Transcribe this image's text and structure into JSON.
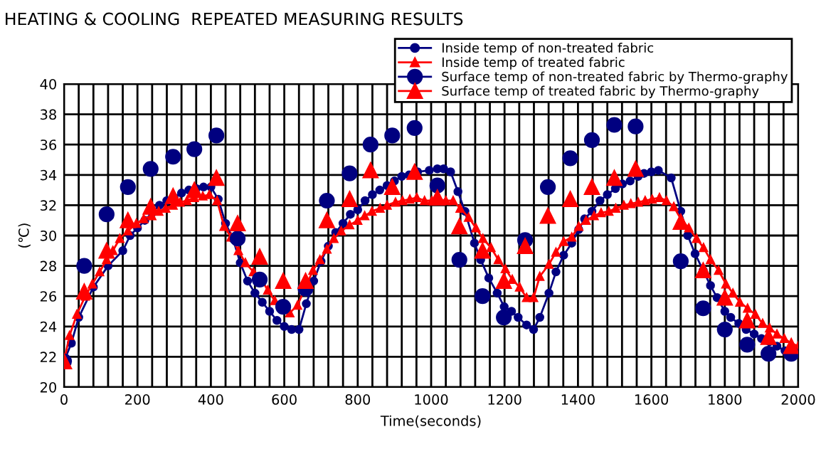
{
  "chart_data": {
    "type": "line",
    "title": "HEATING & COOLING  REPEATED MEASURING RESULTS",
    "xlabel": "Time(seconds)",
    "ylabel": "(℃)",
    "xlim": [
      0,
      2000
    ],
    "ylim": [
      20,
      40
    ],
    "xticks": [
      0,
      {
        "value": 40,
        "label": null
      },
      {
        "value": 80,
        "label": null
      },
      {
        "value": 120,
        "label": null
      },
      {
        "value": 160,
        "label": null
      },
      200,
      {
        "value": 240,
        "label": null
      },
      {
        "value": 280,
        "label": null
      },
      {
        "value": 320,
        "label": null
      },
      {
        "value": 360,
        "label": null
      },
      400,
      {
        "value": 440,
        "label": null
      },
      {
        "value": 480,
        "label": null
      },
      {
        "value": 520,
        "label": null
      },
      {
        "value": 560,
        "label": null
      },
      600,
      {
        "value": 640,
        "label": null
      },
      {
        "value": 680,
        "label": null
      },
      {
        "value": 720,
        "label": null
      },
      {
        "value": 760,
        "label": null
      },
      800,
      {
        "value": 840,
        "label": null
      },
      {
        "value": 880,
        "label": null
      },
      {
        "value": 920,
        "label": null
      },
      {
        "value": 960,
        "label": null
      },
      1000,
      {
        "value": 1040,
        "label": null
      },
      {
        "value": 1080,
        "label": null
      },
      {
        "value": 1120,
        "label": null
      },
      {
        "value": 1160,
        "label": null
      },
      1200,
      {
        "value": 1240,
        "label": null
      },
      {
        "value": 1280,
        "label": null
      },
      {
        "value": 1320,
        "label": null
      },
      {
        "value": 1360,
        "label": null
      },
      1400,
      {
        "value": 1440,
        "label": null
      },
      {
        "value": 1480,
        "label": null
      },
      {
        "value": 1520,
        "label": null
      },
      {
        "value": 1560,
        "label": null
      },
      1600,
      {
        "value": 1640,
        "label": null
      },
      {
        "value": 1680,
        "label": null
      },
      {
        "value": 1720,
        "label": null
      },
      {
        "value": 1760,
        "label": null
      },
      1800,
      {
        "value": 1840,
        "label": null
      },
      {
        "value": 1880,
        "label": null
      },
      {
        "value": 1920,
        "label": null
      },
      {
        "value": 1960,
        "label": null
      },
      2000
    ],
    "yticks": [
      20,
      22,
      24,
      26,
      28,
      30,
      32,
      34,
      36,
      38,
      40
    ],
    "grid": true,
    "legend": "top right",
    "series": [
      {
        "name": "Inside temp of non-treated fabric",
        "color": "#000080",
        "marker": "circle",
        "x": [
          0,
          20,
          40,
          80,
          120,
          160,
          180,
          200,
          220,
          240,
          260,
          280,
          300,
          320,
          340,
          360,
          380,
          400,
          420,
          440,
          460,
          480,
          500,
          520,
          540,
          560,
          580,
          600,
          620,
          640,
          660,
          680,
          700,
          720,
          740,
          760,
          780,
          800,
          820,
          840,
          860,
          880,
          900,
          920,
          940,
          963,
          995,
          1017,
          1034,
          1053,
          1073,
          1092,
          1118,
          1135,
          1157,
          1180,
          1199,
          1219,
          1237,
          1260,
          1279,
          1296,
          1321,
          1340,
          1361,
          1383,
          1402,
          1418,
          1438,
          1460,
          1480,
          1502,
          1521,
          1542,
          1564,
          1580,
          1600,
          1619,
          1654,
          1680,
          1699,
          1719,
          1741,
          1761,
          1779,
          1800,
          1816,
          1838,
          1858,
          1880,
          1900,
          1922,
          1942,
          1964,
          1984,
          2000
        ],
        "values": [
          21.7,
          22.9,
          24.6,
          26.6,
          28.0,
          29.0,
          30.0,
          30.5,
          31.0,
          31.5,
          32.0,
          32.3,
          32.5,
          32.8,
          33.0,
          33.1,
          33.2,
          33.2,
          32.4,
          30.8,
          29.8,
          28.2,
          27.0,
          26.2,
          25.6,
          25.0,
          24.4,
          24.0,
          23.8,
          23.8,
          25.5,
          27.0,
          28.3,
          29.3,
          30.2,
          30.8,
          31.4,
          31.7,
          32.3,
          32.7,
          33.0,
          33.3,
          33.6,
          33.9,
          34.0,
          34.2,
          34.3,
          34.4,
          34.4,
          34.2,
          32.9,
          31.6,
          29.5,
          28.4,
          27.2,
          26.2,
          25.3,
          25.0,
          24.6,
          24.1,
          23.8,
          24.6,
          26.2,
          27.6,
          28.7,
          29.5,
          30.4,
          31.1,
          31.6,
          32.3,
          32.7,
          33.1,
          33.4,
          33.6,
          33.9,
          34.1,
          34.2,
          34.3,
          33.8,
          31.6,
          30.0,
          28.8,
          27.7,
          26.7,
          25.9,
          25.0,
          24.6,
          24.2,
          23.8,
          23.5,
          23.2,
          23.0,
          22.7,
          22.4,
          22.3,
          22.3
        ]
      },
      {
        "name": "Inside temp of treated fabric",
        "color": "#ff0000",
        "marker": "triangle",
        "x": [
          0,
          15,
          35,
          58,
          77,
          97,
          116,
          133,
          152,
          174,
          197,
          217,
          239,
          258,
          277,
          297,
          316,
          335,
          355,
          378,
          396,
          417,
          436,
          455,
          475,
          494,
          516,
          535,
          555,
          574,
          594,
          615,
          636,
          678,
          697,
          716,
          735,
          755,
          778,
          800,
          819,
          839,
          861,
          880,
          903,
          922,
          942,
          961,
          982,
          1002,
          1021,
          1040,
          1060,
          1079,
          1102,
          1122,
          1141,
          1163,
          1183,
          1202,
          1221,
          1241,
          1260,
          1279,
          1296,
          1321,
          1340,
          1361,
          1383,
          1402,
          1422,
          1444,
          1463,
          1484,
          1503,
          1525,
          1544,
          1564,
          1583,
          1602,
          1622,
          1641,
          1661,
          1680,
          1702,
          1723,
          1742,
          1761,
          1783,
          1803,
          1822,
          1841,
          1862,
          1883,
          1903,
          1922,
          1942,
          1962,
          1981,
          2000
        ],
        "values": [
          21.7,
          23.4,
          24.8,
          26.0,
          26.8,
          27.6,
          28.4,
          29.0,
          29.8,
          30.3,
          30.8,
          31.1,
          31.3,
          31.6,
          31.8,
          32.0,
          32.2,
          32.3,
          32.5,
          32.6,
          32.7,
          32.3,
          30.6,
          29.9,
          29.0,
          28.2,
          27.6,
          27.2,
          26.4,
          25.7,
          25.4,
          24.9,
          25.4,
          27.7,
          28.4,
          29.1,
          29.8,
          30.3,
          30.7,
          31.0,
          31.3,
          31.6,
          31.8,
          32.0,
          32.2,
          32.3,
          32.4,
          32.5,
          32.3,
          32.3,
          32.4,
          32.3,
          32.3,
          31.8,
          31.2,
          30.5,
          29.8,
          29.2,
          28.4,
          27.8,
          27.1,
          26.6,
          25.9,
          25.9,
          27.3,
          28.1,
          28.9,
          29.6,
          29.9,
          30.6,
          31.0,
          31.3,
          31.5,
          31.6,
          31.8,
          32.0,
          32.1,
          32.2,
          32.3,
          32.4,
          32.5,
          32.3,
          31.9,
          31.1,
          30.5,
          29.8,
          29.2,
          28.4,
          27.7,
          26.8,
          26.2,
          25.6,
          25.2,
          24.8,
          24.2,
          23.9,
          23.5,
          23.2,
          22.9,
          22.7
        ]
      },
      {
        "name": "Surface temp of non-treated fabric by Thermo-graphy",
        "color": "#000080",
        "type": "scatter",
        "marker": "circle",
        "x": [
          0,
          55,
          116,
          174,
          236,
          297,
          355,
          415,
          473,
          533,
          597,
          658,
          716,
          778,
          835,
          894,
          955,
          1017,
          1077,
          1140,
          1198,
          1256,
          1318,
          1379,
          1438,
          1499,
          1557,
          1680,
          1741,
          1800,
          1861,
          1919,
          1981
        ],
        "values": [
          21.7,
          28.0,
          31.4,
          33.2,
          34.4,
          35.2,
          35.7,
          36.6,
          29.8,
          27.1,
          25.3,
          26.5,
          32.3,
          34.1,
          36.0,
          36.6,
          37.1,
          33.3,
          28.4,
          26.0,
          24.6,
          29.7,
          33.2,
          35.1,
          36.3,
          37.3,
          37.2,
          28.3,
          25.2,
          23.8,
          22.8,
          22.2,
          22.2
        ]
      },
      {
        "name": "Surface temp of treated fabric by Thermo-graphy",
        "color": "#ff0000",
        "type": "scatter",
        "marker": "triangle",
        "x": [
          0,
          55,
          116,
          174,
          236,
          297,
          355,
          415,
          473,
          533,
          597,
          658,
          716,
          778,
          835,
          894,
          955,
          1017,
          1077,
          1140,
          1198,
          1256,
          1318,
          1379,
          1438,
          1499,
          1557,
          1680,
          1741,
          1800,
          1861,
          1919,
          1981
        ],
        "values": [
          21.7,
          26.3,
          29.0,
          31.0,
          31.9,
          32.6,
          33.0,
          33.8,
          30.8,
          28.6,
          27.0,
          27.0,
          31.0,
          32.4,
          34.3,
          33.2,
          34.2,
          32.5,
          30.6,
          29.0,
          27.0,
          29.3,
          31.3,
          32.4,
          33.2,
          33.8,
          34.4,
          30.9,
          27.7,
          25.9,
          24.4,
          23.3,
          22.7
        ]
      }
    ]
  }
}
